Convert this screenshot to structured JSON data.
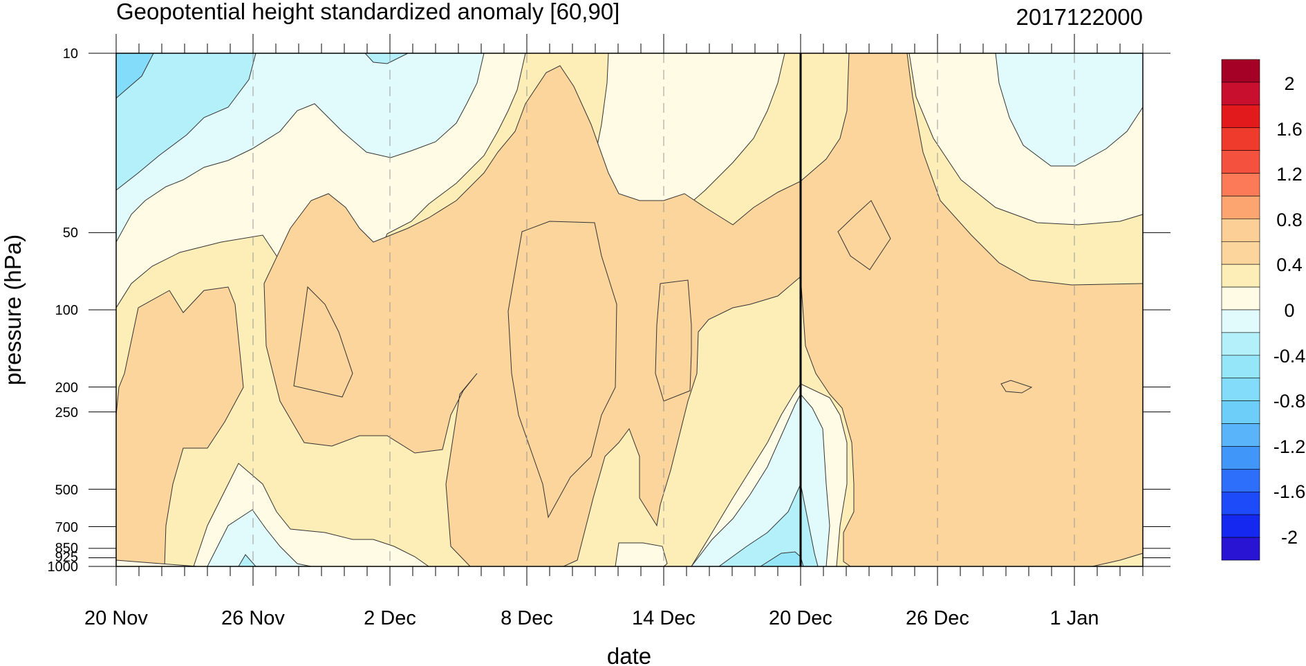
{
  "chart_data": {
    "type": "heatmap",
    "title": "Geopotential height standardized anomaly [60,90]",
    "timestamp": "2017122000",
    "xlabel": "date",
    "ylabel": "pressure (hPa)",
    "x_tick_labels": [
      "20 Nov",
      "26 Nov",
      "2 Dec",
      "8 Dec",
      "14 Dec",
      "20 Dec",
      "26 Dec",
      "1 Jan"
    ],
    "y_tick_labels": [
      "10",
      "50",
      "100",
      "200",
      "250",
      "500",
      "700",
      "850",
      "925",
      "1000"
    ],
    "pressure_levels": [
      10,
      50,
      100,
      200,
      250,
      500,
      700,
      850,
      925,
      1000
    ],
    "date_range": [
      "2017-11-20",
      "2018-01-04"
    ],
    "current_date_line": "2017-12-20",
    "y_scale": "log",
    "y_reversed": true,
    "colorbar": {
      "orientation": "vertical",
      "tick_labels": [
        "2",
        "1.6",
        "1.2",
        "0.8",
        "0.4",
        "0",
        "-0.4",
        "-0.8",
        "-1.2",
        "-1.6",
        "-2"
      ],
      "levels_top_to_bottom": [
        {
          "color": "#a50026"
        },
        {
          "color": "#c8102e"
        },
        {
          "color": "#e31a1c"
        },
        {
          "color": "#ef3b2c"
        },
        {
          "color": "#f4513e"
        },
        {
          "color": "#fc7a57"
        },
        {
          "color": "#fca570"
        },
        {
          "color": "#fccf96"
        },
        {
          "color": "#fcd59c"
        },
        {
          "color": "#fdedb7"
        },
        {
          "color": "#fffbe4"
        },
        {
          "color": "#e1fbfc"
        },
        {
          "color": "#b4f0fa"
        },
        {
          "color": "#96e6fa"
        },
        {
          "color": "#82dcfa"
        },
        {
          "color": "#6ecefa"
        },
        {
          "color": "#5ab4fa"
        },
        {
          "color": "#4196fa"
        },
        {
          "color": "#2d6efa"
        },
        {
          "color": "#1e4bfa"
        },
        {
          "color": "#1428f0"
        },
        {
          "color": "#2814d2"
        }
      ]
    },
    "regions_description_colors": {
      "pos_0_0.4": "#fffbe4",
      "pos_0.4_0.8": "#fdedb7",
      "pos_0.8_1.2": "#fcd59c",
      "neg_-0.4_0": "#e1fbfc",
      "neg_-0.8_-0.4": "#b4f0fa",
      "neg_-1.2_-0.8": "#96e6fa",
      "neg_-1.6_-1.2": "#82dcfa"
    }
  }
}
